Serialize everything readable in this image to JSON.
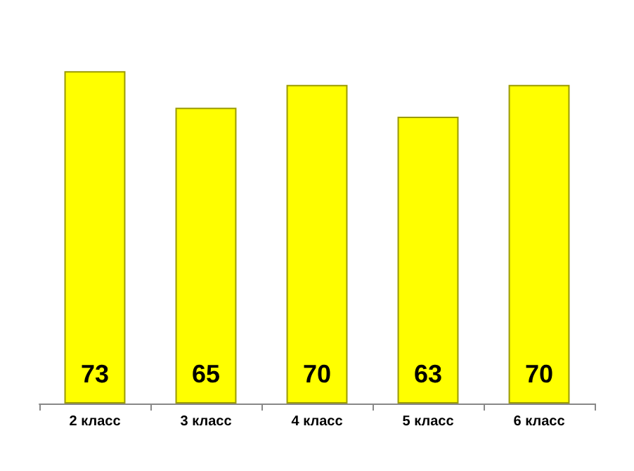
{
  "chart_data": {
    "type": "bar",
    "categories": [
      "2 класс",
      "3 класс",
      "4 класс",
      "5 класс",
      "6 класс"
    ],
    "values": [
      73,
      65,
      70,
      63,
      70
    ],
    "color": "#ffff00",
    "data_labels": true,
    "grid": false
  }
}
